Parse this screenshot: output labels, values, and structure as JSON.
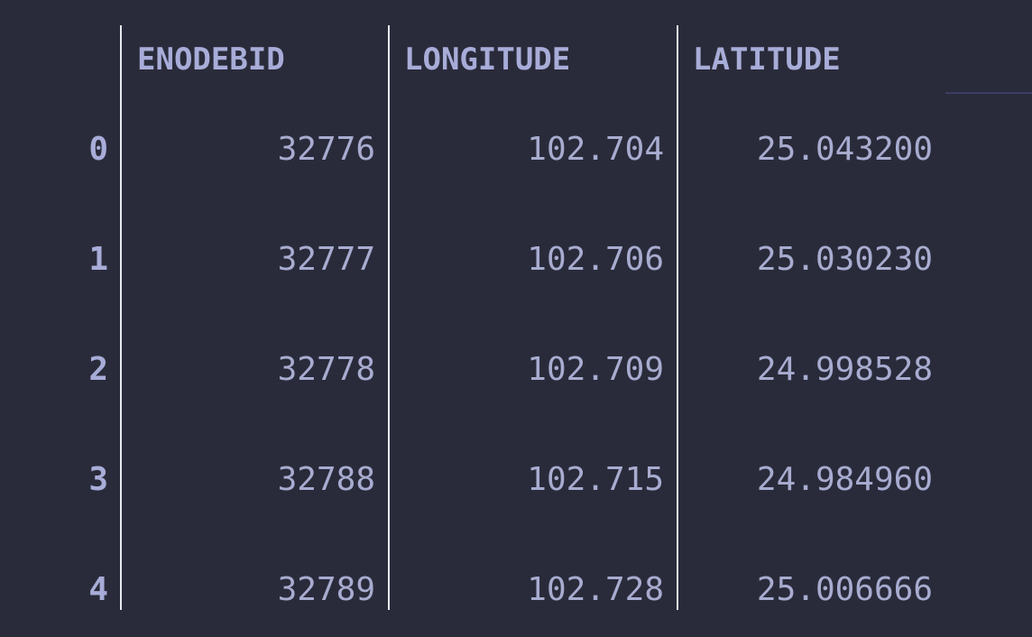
{
  "table": {
    "columns": [
      "ENODEBID",
      "LONGITUDE",
      "LATITUDE"
    ],
    "rows": [
      {
        "index": "0",
        "enodebid": "32776",
        "longitude": "102.704",
        "latitude": "25.043200"
      },
      {
        "index": "1",
        "enodebid": "32777",
        "longitude": "102.706",
        "latitude": "25.030230"
      },
      {
        "index": "2",
        "enodebid": "32778",
        "longitude": "102.709",
        "latitude": "24.998528"
      },
      {
        "index": "3",
        "enodebid": "32788",
        "longitude": "102.715",
        "latitude": "24.984960"
      },
      {
        "index": "4",
        "enodebid": "32789",
        "longitude": "102.728",
        "latitude": "25.006666"
      }
    ]
  },
  "colors": {
    "background": "#2a2b3a",
    "text": "#a8acd0",
    "rule": "#e8e8f0"
  }
}
